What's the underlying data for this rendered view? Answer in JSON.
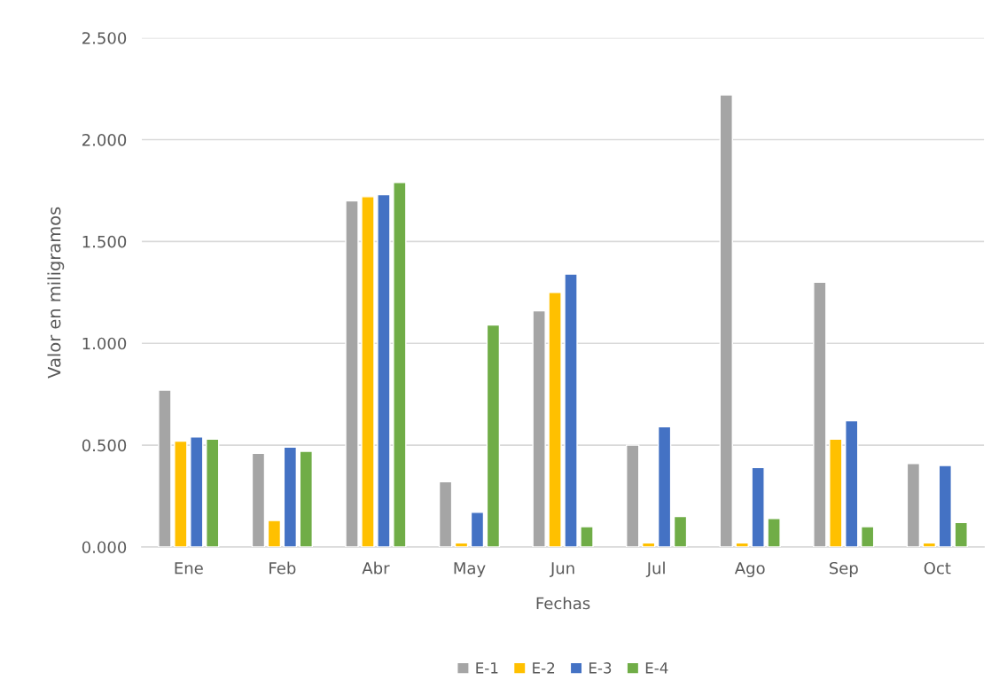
{
  "chart_data": {
    "type": "bar",
    "xlabel": "Fechas",
    "ylabel": "Valor en miligramos",
    "categories": [
      "Ene",
      "Feb",
      "Abr",
      "May",
      "Jun",
      "Jul",
      "Ago",
      "Sep",
      "Oct"
    ],
    "series": [
      {
        "name": "E-1",
        "color": "#a5a5a5",
        "values": [
          0.77,
          0.46,
          1.7,
          0.32,
          1.16,
          0.5,
          2.22,
          1.3,
          0.41
        ]
      },
      {
        "name": "E-2",
        "color": "#ffc000",
        "values": [
          0.52,
          0.13,
          1.72,
          0.02,
          1.25,
          0.02,
          0.02,
          0.53,
          0.02
        ]
      },
      {
        "name": "E-3",
        "color": "#4472c4",
        "values": [
          0.54,
          0.49,
          1.73,
          0.17,
          1.34,
          0.59,
          0.39,
          0.62,
          0.4
        ]
      },
      {
        "name": "E-4",
        "color": "#70ad47",
        "values": [
          0.53,
          0.47,
          1.79,
          1.09,
          0.1,
          0.15,
          0.14,
          0.1,
          0.12
        ]
      }
    ],
    "ylim": [
      0,
      2.5
    ],
    "yticks": [
      {
        "value": 0,
        "label": "0.000"
      },
      {
        "value": 0.5,
        "label": "0.500"
      },
      {
        "value": 1.0,
        "label": "1.000"
      },
      {
        "value": 1.5,
        "label": "1.500"
      },
      {
        "value": 2.0,
        "label": "2.000"
      },
      {
        "value": 2.5,
        "label": "2.500"
      }
    ],
    "grid": "y",
    "legend": "bottom"
  }
}
